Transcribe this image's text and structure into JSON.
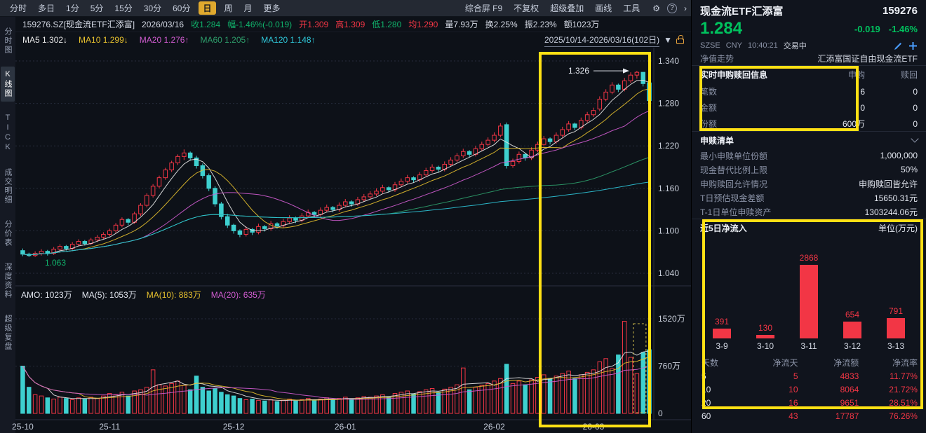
{
  "colors": {
    "up": "#f23645",
    "down": "#3ed0cf",
    "grid": "#262c3b",
    "axis": "#c7cdd8",
    "border": "#2a3040",
    "text_green": "#10b36b",
    "accent_yellow": "#e0a92e",
    "highlight": "#ffe014",
    "blue_icon": "#4a9eff"
  },
  "toolbar": {
    "periods": [
      "分时",
      "多日",
      "1分",
      "5分",
      "15分",
      "30分",
      "60分",
      "日",
      "周",
      "月",
      "更多"
    ],
    "active_period": "日",
    "menus": [
      "综合屏 F9",
      "不复权",
      "超级叠加",
      "画线",
      "工具"
    ],
    "icons": [
      {
        "name": "settings-icon",
        "glyph": "⚙"
      },
      {
        "name": "help-icon",
        "glyph": "?"
      },
      {
        "name": "expand-icon",
        "glyph": "›"
      }
    ]
  },
  "sidebar": {
    "items": [
      "分时图",
      "K线图",
      "TICK",
      "成交明细",
      "分价表",
      "深度资料",
      "超级复盘"
    ],
    "active_index": 1
  },
  "quote_bar": {
    "segments": [
      {
        "text": "159276.SZ[现金流ETF汇添富]",
        "cls": "w"
      },
      {
        "text": "2026/03/16",
        "cls": "w"
      },
      {
        "text": "收1.284",
        "cls": "g"
      },
      {
        "text": "幅-1.46%(-0.019)",
        "cls": "g"
      },
      {
        "text": "开1.309",
        "cls": "r"
      },
      {
        "text": "高1.309",
        "cls": "r"
      },
      {
        "text": "低1.280",
        "cls": "g"
      },
      {
        "text": "均1.290",
        "cls": "r"
      },
      {
        "text": "量7.93万",
        "cls": "w"
      },
      {
        "text": "换2.25%",
        "cls": "w"
      },
      {
        "text": "振2.23%",
        "cls": "w"
      },
      {
        "text": "额1023万",
        "cls": "w"
      }
    ]
  },
  "ma_bar": {
    "items": [
      {
        "label": "MA5",
        "value": "1.302",
        "arrow": "↓",
        "color": "#e8e8e8"
      },
      {
        "label": "MA10",
        "value": "1.299",
        "arrow": "↓",
        "color": "#e6c02e"
      },
      {
        "label": "MA20",
        "value": "1.276",
        "arrow": "↑",
        "color": "#d05cd0"
      },
      {
        "label": "MA60",
        "value": "1.205",
        "arrow": "↑",
        "color": "#2e9e6b"
      },
      {
        "label": "MA120",
        "value": "1.148",
        "arrow": "↑",
        "color": "#2fc7d9"
      }
    ],
    "range": "2025/10/14-2026/03/16(102日)",
    "dropdown_glyph": "▼"
  },
  "chart_data": {
    "kline": {
      "type": "candlestick",
      "series_format": [
        "open",
        "high",
        "low",
        "close",
        "amount_wan"
      ],
      "y_ticks": [
        1.34,
        1.28,
        1.22,
        1.16,
        1.1,
        1.04
      ],
      "vol_ticks": [
        {
          "v": 1520,
          "label": "1520万"
        },
        {
          "v": 760,
          "label": "760万"
        },
        {
          "v": 0,
          "label": "0"
        }
      ],
      "x_labels": [
        {
          "label": "25-10",
          "index": 0
        },
        {
          "label": "25-11",
          "index": 14
        },
        {
          "label": "25-12",
          "index": 34
        },
        {
          "label": "26-01",
          "index": 52
        },
        {
          "label": "26-02",
          "index": 76
        },
        {
          "label": "26-03",
          "index": 92
        }
      ],
      "annotations": {
        "high": "1.326",
        "low": "1.063"
      },
      "price_ma": [
        {
          "period": 5,
          "color": "#e8e8e8"
        },
        {
          "period": 10,
          "color": "#e6c02e"
        },
        {
          "period": 20,
          "color": "#d05cd0"
        },
        {
          "period": 60,
          "color": "#2e9e6b"
        },
        {
          "period": 120,
          "color": "#2fc7d9"
        }
      ],
      "vol_ma": [
        {
          "period": 5,
          "color": "#e8e8e8"
        },
        {
          "period": 10,
          "color": "#e6c02e"
        },
        {
          "period": 20,
          "color": "#d05cd0"
        }
      ],
      "amo_segments": [
        {
          "text": "AMO: 1023万",
          "color": "#dfe3ec"
        },
        {
          "text": "MA(5): 1053万",
          "color": "#dfe3ec"
        },
        {
          "text": "MA(10): 883万",
          "color": "#e6c02e"
        },
        {
          "text": "MA(20): 635万",
          "color": "#d05cd0"
        }
      ],
      "candles": [
        [
          1.072,
          1.075,
          1.064,
          1.067,
          760
        ],
        [
          1.067,
          1.069,
          1.063,
          1.065,
          420
        ],
        [
          1.065,
          1.071,
          1.063,
          1.068,
          300
        ],
        [
          1.068,
          1.074,
          1.065,
          1.071,
          280
        ],
        [
          1.071,
          1.073,
          1.065,
          1.068,
          250
        ],
        [
          1.068,
          1.077,
          1.066,
          1.074,
          230
        ],
        [
          1.074,
          1.081,
          1.071,
          1.078,
          260
        ],
        [
          1.078,
          1.08,
          1.072,
          1.075,
          240
        ],
        [
          1.075,
          1.084,
          1.073,
          1.081,
          220
        ],
        [
          1.081,
          1.088,
          1.078,
          1.085,
          250
        ],
        [
          1.085,
          1.087,
          1.079,
          1.082,
          230
        ],
        [
          1.082,
          1.09,
          1.08,
          1.087,
          260
        ],
        [
          1.087,
          1.094,
          1.084,
          1.091,
          240
        ],
        [
          1.091,
          1.098,
          1.088,
          1.095,
          280
        ],
        [
          1.095,
          1.103,
          1.092,
          1.1,
          320
        ],
        [
          1.1,
          1.111,
          1.097,
          1.108,
          300
        ],
        [
          1.108,
          1.119,
          1.105,
          1.116,
          340
        ],
        [
          1.116,
          1.118,
          1.108,
          1.112,
          280
        ],
        [
          1.112,
          1.127,
          1.11,
          1.124,
          360
        ],
        [
          1.124,
          1.139,
          1.121,
          1.136,
          380
        ],
        [
          1.136,
          1.153,
          1.133,
          1.15,
          420
        ],
        [
          1.15,
          1.166,
          1.147,
          1.163,
          700
        ],
        [
          1.163,
          1.178,
          1.16,
          1.175,
          460
        ],
        [
          1.175,
          1.189,
          1.172,
          1.186,
          440
        ],
        [
          1.186,
          1.199,
          1.183,
          1.196,
          480
        ],
        [
          1.196,
          1.208,
          1.193,
          1.205,
          520
        ],
        [
          1.205,
          1.215,
          1.2,
          1.21,
          450
        ],
        [
          1.21,
          1.212,
          1.199,
          1.203,
          380
        ],
        [
          1.203,
          1.206,
          1.188,
          1.192,
          600
        ],
        [
          1.192,
          1.195,
          1.174,
          1.178,
          420
        ],
        [
          1.178,
          1.181,
          1.156,
          1.16,
          360
        ],
        [
          1.16,
          1.163,
          1.134,
          1.138,
          400
        ],
        [
          1.138,
          1.141,
          1.116,
          1.12,
          340
        ],
        [
          1.12,
          1.124,
          1.104,
          1.108,
          300
        ],
        [
          1.108,
          1.11,
          1.096,
          1.1,
          280
        ],
        [
          1.1,
          1.102,
          1.091,
          1.095,
          240
        ],
        [
          1.095,
          1.106,
          1.092,
          1.102,
          220
        ],
        [
          1.102,
          1.104,
          1.094,
          1.098,
          230
        ],
        [
          1.098,
          1.11,
          1.095,
          1.106,
          210
        ],
        [
          1.106,
          1.108,
          1.099,
          1.103,
          200
        ],
        [
          1.103,
          1.114,
          1.1,
          1.11,
          220
        ],
        [
          1.11,
          1.112,
          1.103,
          1.107,
          190
        ],
        [
          1.107,
          1.117,
          1.104,
          1.113,
          210
        ],
        [
          1.113,
          1.122,
          1.11,
          1.118,
          230
        ],
        [
          1.118,
          1.12,
          1.111,
          1.115,
          200
        ],
        [
          1.115,
          1.125,
          1.112,
          1.121,
          220
        ],
        [
          1.121,
          1.13,
          1.118,
          1.126,
          240
        ],
        [
          1.126,
          1.128,
          1.119,
          1.123,
          210
        ],
        [
          1.123,
          1.133,
          1.12,
          1.129,
          230
        ],
        [
          1.129,
          1.137,
          1.126,
          1.133,
          250
        ],
        [
          1.133,
          1.135,
          1.126,
          1.13,
          220
        ],
        [
          1.13,
          1.14,
          1.127,
          1.136,
          240
        ],
        [
          1.136,
          1.145,
          1.133,
          1.141,
          260
        ],
        [
          1.141,
          1.143,
          1.134,
          1.138,
          230
        ],
        [
          1.138,
          1.148,
          1.135,
          1.144,
          250
        ],
        [
          1.144,
          1.152,
          1.141,
          1.148,
          270
        ],
        [
          1.148,
          1.156,
          1.145,
          1.152,
          260
        ],
        [
          1.152,
          1.16,
          1.149,
          1.156,
          280
        ],
        [
          1.156,
          1.165,
          1.153,
          1.161,
          300
        ],
        [
          1.161,
          1.163,
          1.154,
          1.158,
          260
        ],
        [
          1.158,
          1.169,
          1.155,
          1.165,
          320
        ],
        [
          1.165,
          1.174,
          1.162,
          1.17,
          340
        ],
        [
          1.17,
          1.179,
          1.167,
          1.175,
          360
        ],
        [
          1.175,
          1.177,
          1.168,
          1.172,
          310
        ],
        [
          1.172,
          1.183,
          1.169,
          1.179,
          350
        ],
        [
          1.179,
          1.189,
          1.176,
          1.185,
          380
        ],
        [
          1.185,
          1.194,
          1.182,
          1.19,
          400
        ],
        [
          1.19,
          1.192,
          1.183,
          1.187,
          340
        ],
        [
          1.187,
          1.198,
          1.184,
          1.194,
          390
        ],
        [
          1.194,
          1.204,
          1.191,
          1.2,
          420
        ],
        [
          1.2,
          1.21,
          1.197,
          1.206,
          460
        ],
        [
          1.206,
          1.216,
          1.203,
          1.212,
          730
        ],
        [
          1.212,
          1.214,
          1.204,
          1.208,
          380
        ],
        [
          1.208,
          1.22,
          1.205,
          1.216,
          420
        ],
        [
          1.216,
          1.226,
          1.213,
          1.222,
          450
        ],
        [
          1.222,
          1.232,
          1.219,
          1.228,
          480
        ],
        [
          1.228,
          1.239,
          1.225,
          1.235,
          520
        ],
        [
          1.235,
          1.252,
          1.232,
          1.248,
          560
        ],
        [
          1.25,
          1.253,
          1.188,
          1.192,
          790
        ],
        [
          1.192,
          1.202,
          1.189,
          1.198,
          480
        ],
        [
          1.198,
          1.212,
          1.195,
          1.208,
          520
        ],
        [
          1.208,
          1.21,
          1.199,
          1.203,
          460
        ],
        [
          1.203,
          1.218,
          1.2,
          1.214,
          540
        ],
        [
          1.214,
          1.226,
          1.211,
          1.222,
          580
        ],
        [
          1.222,
          1.234,
          1.219,
          1.23,
          620
        ],
        [
          1.23,
          1.232,
          1.222,
          1.226,
          560
        ],
        [
          1.226,
          1.239,
          1.223,
          1.235,
          600
        ],
        [
          1.235,
          1.247,
          1.232,
          1.243,
          640
        ],
        [
          1.243,
          1.255,
          1.24,
          1.251,
          680
        ],
        [
          1.251,
          1.253,
          1.242,
          1.246,
          560
        ],
        [
          1.246,
          1.26,
          1.243,
          1.256,
          620
        ],
        [
          1.256,
          1.268,
          1.253,
          1.264,
          660
        ],
        [
          1.264,
          1.274,
          1.261,
          1.27,
          700
        ],
        [
          1.272,
          1.29,
          1.269,
          1.286,
          830
        ],
        [
          1.286,
          1.3,
          1.283,
          1.296,
          880
        ],
        [
          1.296,
          1.31,
          1.293,
          1.306,
          720
        ],
        [
          1.306,
          1.308,
          1.296,
          1.3,
          940
        ],
        [
          1.3,
          1.316,
          1.297,
          1.312,
          1480
        ],
        [
          1.312,
          1.324,
          1.309,
          1.32,
          900
        ],
        [
          1.32,
          1.326,
          1.315,
          1.324,
          640
        ],
        [
          1.324,
          1.324,
          1.304,
          1.308,
          980
        ],
        [
          1.309,
          1.309,
          1.28,
          1.284,
          1023
        ]
      ]
    },
    "netflow": {
      "type": "bar",
      "title": "近5日净流入",
      "unit": "单位(万元)",
      "categories": [
        "3-9",
        "3-10",
        "3-11",
        "3-12",
        "3-13"
      ],
      "values": [
        391,
        130,
        2868,
        654,
        791
      ],
      "max": 2868
    }
  },
  "right_panel": {
    "name": "现金流ETF汇添富",
    "code": "159276",
    "price": "1.284",
    "change": "-0.019",
    "change_pct": "-1.46%",
    "exchange": "SZSE",
    "currency": "CNY",
    "time": "10:40:21",
    "status": "交易中",
    "nav_label": "净值走势",
    "nav_value": "汇添富国证自由现金流ETF",
    "subscribe_panel": {
      "title": "实时申购赎回信息",
      "col1": "申购",
      "col2": "赎回",
      "rows": [
        {
          "label": "笔数",
          "buy": "6",
          "sell": "0"
        },
        {
          "label": "金额",
          "buy": "0",
          "sell": "0"
        },
        {
          "label": "份额",
          "buy": "600万",
          "sell": "0"
        }
      ]
    },
    "list_panel": {
      "title": "申赎清单",
      "rows": [
        {
          "label": "最小申赎单位份额",
          "value": "1,000,000"
        },
        {
          "label": "现金替代比例上限",
          "value": "50%"
        },
        {
          "label": "申购赎回允许情况",
          "value": "申购赎回皆允许"
        },
        {
          "label": "T日预估现金差额",
          "value": "15650.31元"
        },
        {
          "label": "T-1日单位申赎资产",
          "value": "1303244.06元"
        }
      ]
    },
    "flow_panel": {
      "table": {
        "headers": [
          "天数",
          "净流天",
          "净流额",
          "净流率"
        ],
        "rows": [
          [
            "5",
            "5",
            "4833",
            "11.77%"
          ],
          [
            "10",
            "10",
            "8064",
            "21.72%"
          ],
          [
            "20",
            "16",
            "9651",
            "28.51%"
          ],
          [
            "60",
            "43",
            "17787",
            "76.26%"
          ]
        ]
      }
    }
  }
}
